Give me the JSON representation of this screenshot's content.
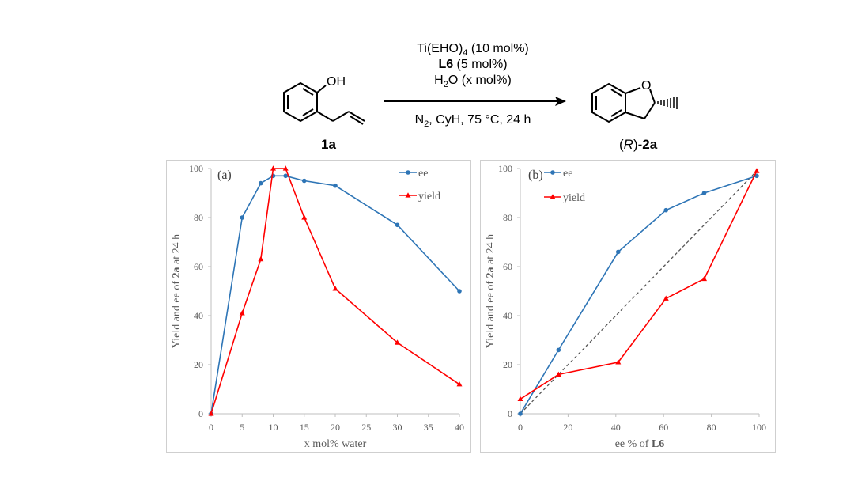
{
  "scheme": {
    "reagent_line1_main": "Ti(EHO)",
    "reagent_line1_sub": "4",
    "reagent_line1_tail": " (10 mol%)",
    "reagent_line2_bold": "L6",
    "reagent_line2_tail": " (5 mol%)",
    "reagent_line3_main": "H",
    "reagent_line3_sub": "2",
    "reagent_line3_tail": "O (x mol%)",
    "conditions_main": "N",
    "conditions_sub": "2",
    "conditions_tail": ", CyH, 75 °C, 24 h",
    "substituent_label": "OH",
    "ring_oxygen_label": "O",
    "reactant_label": "1a",
    "product_label_prefix": "(",
    "product_label_italic": "R",
    "product_label_mid": ")-",
    "product_label_bold": "2a"
  },
  "chart_data": [
    {
      "type": "line",
      "panel_label": "(a)",
      "xlabel": "x mol% water",
      "ylabel_prefix": "Yield and ee of ",
      "ylabel_bold": "2a",
      "ylabel_suffix": " at 24 h",
      "xlim": [
        0,
        40
      ],
      "ylim": [
        0,
        100
      ],
      "xticks": [
        0,
        5,
        10,
        15,
        20,
        25,
        30,
        35,
        40
      ],
      "yticks": [
        0,
        20,
        40,
        60,
        80,
        100
      ],
      "legend_position": "top-right",
      "series": [
        {
          "name": "ee",
          "color": "#2e75b6",
          "marker": "circle",
          "x": [
            0,
            5,
            8,
            10,
            12,
            15,
            20,
            30,
            40
          ],
          "y": [
            0,
            80,
            94,
            97,
            97,
            95,
            93,
            77,
            50
          ]
        },
        {
          "name": "yield",
          "color": "#ff0000",
          "marker": "triangle",
          "x": [
            0,
            5,
            8,
            10,
            12,
            15,
            20,
            30,
            40
          ],
          "y": [
            0,
            41,
            63,
            100,
            100,
            80,
            51,
            29,
            12
          ]
        }
      ]
    },
    {
      "type": "line",
      "panel_label": "(b)",
      "xlabel_prefix": "ee % of ",
      "xlabel_bold": "L6",
      "ylabel_prefix": "Yield and ee of ",
      "ylabel_bold": "2a",
      "ylabel_suffix": " at 24 h",
      "xlim": [
        0,
        100
      ],
      "ylim": [
        0,
        100
      ],
      "xticks": [
        0,
        20,
        40,
        60,
        80,
        100
      ],
      "yticks": [
        0,
        20,
        40,
        60,
        80,
        100
      ],
      "legend_position": "top-left",
      "series": [
        {
          "name": "ee",
          "color": "#2e75b6",
          "marker": "circle",
          "x": [
            0,
            16,
            41,
            61,
            77,
            99
          ],
          "y": [
            0,
            26,
            66,
            83,
            90,
            97
          ]
        },
        {
          "name": "yield",
          "color": "#ff0000",
          "marker": "triangle",
          "x": [
            0,
            16,
            41,
            61,
            77,
            99
          ],
          "y": [
            6,
            16,
            21,
            47,
            55,
            99
          ]
        }
      ],
      "reference_line": {
        "style": "dashed",
        "color": "#555555",
        "x": [
          0,
          100
        ],
        "y": [
          0,
          100
        ]
      }
    }
  ]
}
